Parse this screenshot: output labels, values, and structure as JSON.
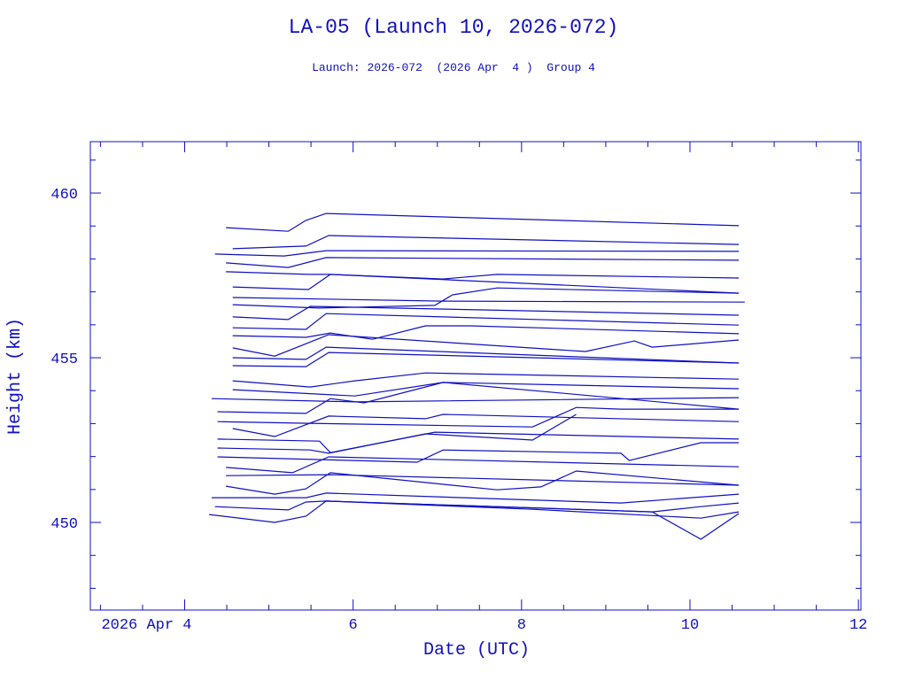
{
  "chart_data": {
    "type": "line",
    "title": "LA-05 (Launch 10, 2026-072)",
    "subtitle": "Launch: 2026-072  (2026 Apr  4 )  Group 4",
    "xlabel": "Date (UTC)",
    "ylabel": "Height (km)",
    "xlim": [
      2.88,
      12.03
    ],
    "ylim": [
      447.34,
      461.56
    ],
    "x_ticks": [
      4,
      6,
      8,
      10,
      12
    ],
    "x_tick_labels": [
      "2026 Apr  4",
      "6",
      "8",
      "10",
      "12"
    ],
    "x_minor_step": 0.5,
    "y_ticks": [
      450,
      455,
      460
    ],
    "y_tick_labels": [
      "450",
      "455",
      "460"
    ],
    "y_minor_step": 1,
    "grid": false,
    "color": "#1010c0",
    "series": [
      {
        "name": "obj-1",
        "points": [
          [
            4.49,
            458.95
          ],
          [
            5.23,
            458.84
          ],
          [
            5.44,
            459.17
          ],
          [
            5.68,
            459.38
          ],
          [
            10.58,
            459.01
          ]
        ]
      },
      {
        "name": "obj-2",
        "points": [
          [
            4.57,
            458.31
          ],
          [
            5.44,
            458.39
          ],
          [
            5.71,
            458.71
          ],
          [
            10.58,
            458.44
          ]
        ]
      },
      {
        "name": "obj-3",
        "points": [
          [
            4.36,
            458.15
          ],
          [
            5.18,
            458.09
          ],
          [
            5.68,
            458.25
          ],
          [
            10.58,
            458.23
          ]
        ]
      },
      {
        "name": "obj-4",
        "points": [
          [
            4.49,
            457.88
          ],
          [
            5.23,
            457.74
          ],
          [
            5.68,
            458.04
          ],
          [
            10.58,
            457.96
          ]
        ]
      },
      {
        "name": "obj-5",
        "points": [
          [
            4.49,
            457.61
          ],
          [
            5.47,
            457.53
          ],
          [
            5.73,
            457.53
          ],
          [
            7.07,
            457.39
          ],
          [
            7.71,
            457.53
          ],
          [
            10.58,
            457.42
          ]
        ]
      },
      {
        "name": "obj-6",
        "points": [
          [
            4.57,
            457.15
          ],
          [
            5.47,
            457.07
          ],
          [
            5.73,
            457.53
          ],
          [
            10.58,
            456.96
          ]
        ]
      },
      {
        "name": "obj-7",
        "points": [
          [
            4.57,
            456.83
          ],
          [
            7.07,
            456.72
          ],
          [
            10.65,
            456.69
          ]
        ]
      },
      {
        "name": "obj-8",
        "points": [
          [
            4.57,
            456.61
          ],
          [
            5.6,
            456.51
          ],
          [
            6.97,
            456.59
          ],
          [
            7.18,
            456.91
          ],
          [
            7.71,
            457.12
          ],
          [
            10.58,
            456.96
          ]
        ]
      },
      {
        "name": "obj-9",
        "points": [
          [
            4.57,
            456.24
          ],
          [
            5.23,
            456.16
          ],
          [
            5.49,
            456.56
          ],
          [
            10.58,
            456.29
          ]
        ]
      },
      {
        "name": "obj-10",
        "points": [
          [
            4.57,
            455.91
          ],
          [
            5.44,
            455.86
          ],
          [
            5.68,
            456.34
          ],
          [
            10.58,
            455.99
          ]
        ]
      },
      {
        "name": "obj-11",
        "points": [
          [
            4.57,
            455.67
          ],
          [
            5.44,
            455.62
          ],
          [
            5.73,
            455.75
          ],
          [
            6.23,
            455.56
          ],
          [
            6.86,
            455.97
          ],
          [
            7.39,
            455.97
          ],
          [
            10.58,
            455.73
          ]
        ]
      },
      {
        "name": "obj-12",
        "points": [
          [
            4.57,
            455.3
          ],
          [
            5.07,
            455.05
          ],
          [
            5.71,
            455.7
          ],
          [
            8.76,
            455.19
          ],
          [
            9.34,
            455.51
          ],
          [
            9.55,
            455.32
          ],
          [
            10.58,
            455.54
          ]
        ]
      },
      {
        "name": "obj-13",
        "points": [
          [
            4.57,
            455.0
          ],
          [
            5.44,
            454.95
          ],
          [
            5.68,
            455.32
          ],
          [
            10.58,
            454.84
          ]
        ]
      },
      {
        "name": "obj-14",
        "points": [
          [
            4.57,
            454.76
          ],
          [
            5.44,
            454.73
          ],
          [
            5.71,
            455.16
          ],
          [
            10.58,
            454.84
          ]
        ]
      },
      {
        "name": "obj-15",
        "points": [
          [
            4.57,
            454.3
          ],
          [
            5.49,
            454.11
          ],
          [
            6.02,
            454.3
          ],
          [
            6.86,
            454.54
          ],
          [
            10.58,
            454.35
          ]
        ]
      },
      {
        "name": "obj-16",
        "points": [
          [
            4.57,
            454.03
          ],
          [
            6.02,
            453.84
          ],
          [
            7.07,
            454.25
          ],
          [
            10.58,
            454.06
          ]
        ]
      },
      {
        "name": "obj-17",
        "points": [
          [
            4.32,
            453.76
          ],
          [
            6.02,
            453.66
          ],
          [
            10.58,
            453.79
          ]
        ]
      },
      {
        "name": "obj-18",
        "points": [
          [
            4.39,
            453.36
          ],
          [
            5.44,
            453.31
          ],
          [
            5.73,
            453.76
          ],
          [
            6.13,
            453.63
          ],
          [
            7.07,
            454.25
          ],
          [
            10.58,
            453.44
          ]
        ]
      },
      {
        "name": "obj-19",
        "points": [
          [
            4.57,
            452.85
          ],
          [
            5.07,
            452.61
          ],
          [
            5.71,
            453.23
          ],
          [
            6.86,
            453.15
          ],
          [
            7.07,
            453.28
          ],
          [
            10.58,
            453.06
          ]
        ]
      },
      {
        "name": "obj-20",
        "points": [
          [
            4.39,
            453.06
          ],
          [
            5.49,
            453.01
          ],
          [
            8.13,
            452.9
          ],
          [
            8.65,
            453.49
          ],
          [
            9.18,
            453.44
          ],
          [
            10.58,
            453.44
          ]
        ]
      },
      {
        "name": "obj-21",
        "points": [
          [
            4.39,
            452.53
          ],
          [
            5.6,
            452.47
          ],
          [
            5.73,
            452.12
          ],
          [
            6.97,
            452.74
          ],
          [
            10.58,
            452.53
          ]
        ]
      },
      {
        "name": "obj-22",
        "points": [
          [
            4.39,
            452.26
          ],
          [
            5.49,
            452.2
          ],
          [
            5.71,
            452.1
          ],
          [
            6.86,
            452.69
          ],
          [
            8.13,
            452.5
          ],
          [
            8.65,
            453.28
          ]
        ]
      },
      {
        "name": "obj-23",
        "points": [
          [
            4.39,
            451.99
          ],
          [
            6.76,
            451.83
          ],
          [
            7.07,
            452.2
          ],
          [
            9.18,
            452.1
          ],
          [
            9.28,
            451.88
          ],
          [
            10.13,
            452.42
          ],
          [
            10.58,
            452.42
          ]
        ]
      },
      {
        "name": "obj-24",
        "points": [
          [
            4.49,
            451.67
          ],
          [
            5.28,
            451.51
          ],
          [
            5.71,
            451.99
          ],
          [
            10.58,
            451.69
          ]
        ]
      },
      {
        "name": "obj-25",
        "points": [
          [
            4.49,
            451.42
          ],
          [
            5.73,
            451.45
          ],
          [
            10.58,
            451.13
          ]
        ]
      },
      {
        "name": "obj-26",
        "points": [
          [
            4.49,
            451.1
          ],
          [
            5.07,
            450.86
          ],
          [
            5.44,
            451.02
          ],
          [
            5.73,
            451.51
          ],
          [
            7.71,
            450.99
          ],
          [
            8.23,
            451.08
          ],
          [
            8.65,
            451.56
          ],
          [
            10.58,
            451.13
          ]
        ]
      },
      {
        "name": "obj-27",
        "points": [
          [
            4.32,
            450.75
          ],
          [
            5.44,
            450.75
          ],
          [
            5.68,
            450.89
          ],
          [
            9.18,
            450.59
          ],
          [
            10.58,
            450.86
          ]
        ]
      },
      {
        "name": "obj-28",
        "points": [
          [
            4.36,
            450.48
          ],
          [
            5.23,
            450.38
          ],
          [
            5.44,
            450.62
          ],
          [
            5.68,
            450.65
          ],
          [
            9.55,
            450.32
          ],
          [
            10.13,
            450.48
          ],
          [
            10.58,
            450.59
          ]
        ]
      },
      {
        "name": "obj-29",
        "points": [
          [
            4.29,
            450.24
          ],
          [
            5.07,
            450.0
          ],
          [
            5.44,
            450.19
          ],
          [
            5.68,
            450.65
          ],
          [
            9.55,
            450.32
          ],
          [
            10.13,
            449.49
          ],
          [
            10.58,
            450.27
          ]
        ]
      },
      {
        "name": "obj-30",
        "points": [
          [
            5.68,
            450.65
          ],
          [
            8.13,
            450.4
          ],
          [
            10.13,
            450.13
          ],
          [
            10.58,
            450.32
          ]
        ]
      }
    ]
  }
}
